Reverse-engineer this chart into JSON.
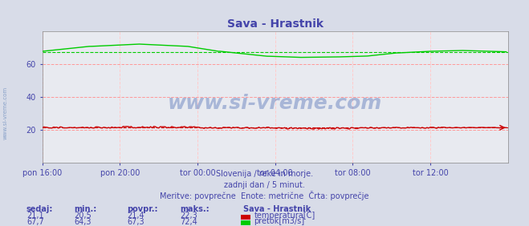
{
  "title": "Sava - Hrastnik",
  "title_color": "#4444aa",
  "bg_color": "#d8dce8",
  "plot_bg_color": "#e8eaf0",
  "grid_color_h": "#ff9999",
  "grid_color_v": "#ffcccc",
  "xlabel_color": "#4444aa",
  "text_color": "#4444aa",
  "figsize": [
    6.59,
    2.82
  ],
  "dpi": 100,
  "xlim": [
    0,
    288
  ],
  "ylim": [
    0,
    80
  ],
  "yticks": [
    20,
    40,
    60
  ],
  "xtick_labels": [
    "pon 16:00",
    "pon 20:00",
    "tor 00:00",
    "tor 04:00",
    "tor 08:00",
    "tor 12:00"
  ],
  "xtick_positions": [
    0,
    48,
    96,
    144,
    192,
    240
  ],
  "temp_color": "#cc0000",
  "flow_color": "#00cc00",
  "avg_temp": 21.4,
  "avg_flow": 67.3,
  "temp_min": 20.5,
  "temp_max": 22.3,
  "temp_current": 21.1,
  "flow_min": 64.3,
  "flow_max": 72.4,
  "flow_current": 67.7,
  "watermark": "www.si-vreme.com",
  "subtitle1": "Slovenija / reke in morje.",
  "subtitle2": "zadnji dan / 5 minut.",
  "subtitle3": "Meritve: povprečne  Enote: metrične  Črta: povprečje",
  "legend_title": "Sava - Hrastnik",
  "label_sedaj": "sedaj:",
  "label_min": "min.:",
  "label_povpr": "povpr.:",
  "label_maks": "maks.:",
  "label_temp": "temperatura[C]",
  "label_flow": "pretok[m3/s]"
}
